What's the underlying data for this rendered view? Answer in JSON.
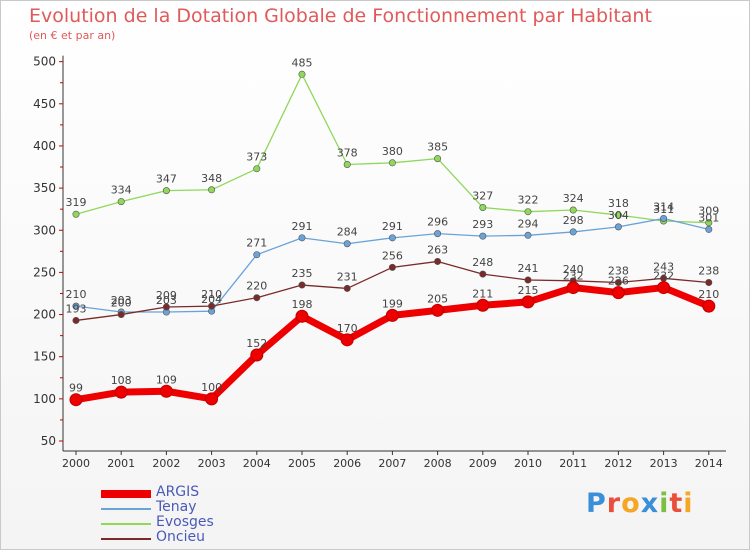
{
  "header": {
    "title": "Evolution de la Dotation Globale de Fonctionnement par Habitant",
    "subtitle": "(en € et par an)"
  },
  "brand": {
    "letters": [
      "P",
      "r",
      "o",
      "x",
      "i",
      "t",
      "i"
    ],
    "colors": [
      "#3a8fd8",
      "#e94f3a",
      "#f5a623",
      "#3a8fd8",
      "#7cc043",
      "#e94f3a",
      "#f5a623"
    ]
  },
  "chart_data": {
    "type": "line",
    "x": [
      "2000",
      "2001",
      "2002",
      "2003",
      "2004",
      "2005",
      "2006",
      "2007",
      "2008",
      "2009",
      "2010",
      "2011",
      "2012",
      "2013",
      "2014"
    ],
    "ylim": [
      50,
      500
    ],
    "yticks": [
      "50",
      "100",
      "150",
      "200",
      "250",
      "300",
      "350",
      "400",
      "450",
      "500"
    ],
    "grid": false,
    "legend_position": "bottom-left",
    "series": [
      {
        "name": "ARGIS",
        "color": "#ee0000",
        "values": [
          99,
          108,
          109,
          100,
          152,
          198,
          170,
          199,
          205,
          211,
          215,
          232,
          226,
          232,
          210
        ],
        "labels": [
          "99",
          "108",
          "109",
          "100",
          "152",
          "198",
          "170",
          "199",
          "205",
          "211",
          "215",
          "232",
          "226",
          "232",
          "210"
        ]
      },
      {
        "name": "Tenay",
        "color": "#6aa3d8",
        "values": [
          210,
          203,
          203,
          204,
          271,
          291,
          284,
          291,
          296,
          293,
          294,
          298,
          304,
          314,
          301
        ],
        "labels": [
          "210",
          "203",
          "203",
          "204",
          "271",
          "291",
          "284",
          "291",
          "296",
          "293",
          "294",
          "298",
          "304",
          "314",
          "301"
        ]
      },
      {
        "name": "Evosges",
        "color": "#8fd85a",
        "values": [
          319,
          334,
          347,
          348,
          373,
          485,
          378,
          380,
          385,
          327,
          322,
          324,
          318,
          311,
          309
        ],
        "labels": [
          "319",
          "334",
          "347",
          "348",
          "373",
          "485",
          "378",
          "380",
          "385",
          "327",
          "322",
          "324",
          "318",
          "311",
          "309"
        ]
      },
      {
        "name": "Oncieu",
        "color": "#7a2a2a",
        "values": [
          193,
          200,
          209,
          210,
          220,
          235,
          231,
          256,
          263,
          248,
          241,
          240,
          238,
          243,
          238
        ],
        "labels": [
          "193",
          "200",
          "209",
          "210",
          "220",
          "235",
          "231",
          "256",
          "263",
          "248",
          "241",
          "240",
          "238",
          "243",
          "238"
        ]
      }
    ]
  }
}
